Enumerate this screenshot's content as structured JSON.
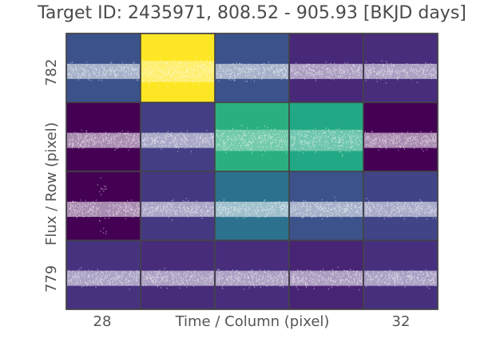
{
  "chart_data": {
    "type": "scatter",
    "title": "Target ID: 2435971, 808.52 - 905.93 [BKJD days]",
    "xlabel": "Time / Column (pixel)",
    "ylabel": "Flux / Row (pixel)",
    "x_ticks": [
      "28",
      "32"
    ],
    "y_ticks": [
      "782",
      "779"
    ],
    "grid": false,
    "columns": [
      28,
      29,
      30,
      31,
      32
    ],
    "rows": [
      782,
      781,
      780,
      779
    ],
    "time_range": [
      808.52,
      905.93
    ],
    "point_color": "#ffffff",
    "cell_colors": [
      [
        "#3b528b",
        "#fde725",
        "#3b528b",
        "#482878",
        "#472d7b"
      ],
      [
        "#440154",
        "#433e85",
        "#2ab07f",
        "#22a884",
        "#440154"
      ],
      [
        "#440154",
        "#453882",
        "#2c728e",
        "#3b528b",
        "#414487"
      ],
      [
        "#46327e",
        "#472c7a",
        "#472d7b",
        "#482475",
        "#46307e"
      ]
    ],
    "cell_flux_level": [
      [
        0.35,
        1.0,
        0.35,
        0.1,
        0.12
      ],
      [
        0.0,
        0.3,
        0.75,
        0.75,
        0.02
      ],
      [
        0.0,
        0.25,
        0.5,
        0.35,
        0.28
      ],
      [
        0.2,
        0.15,
        0.14,
        0.1,
        0.17
      ]
    ]
  }
}
